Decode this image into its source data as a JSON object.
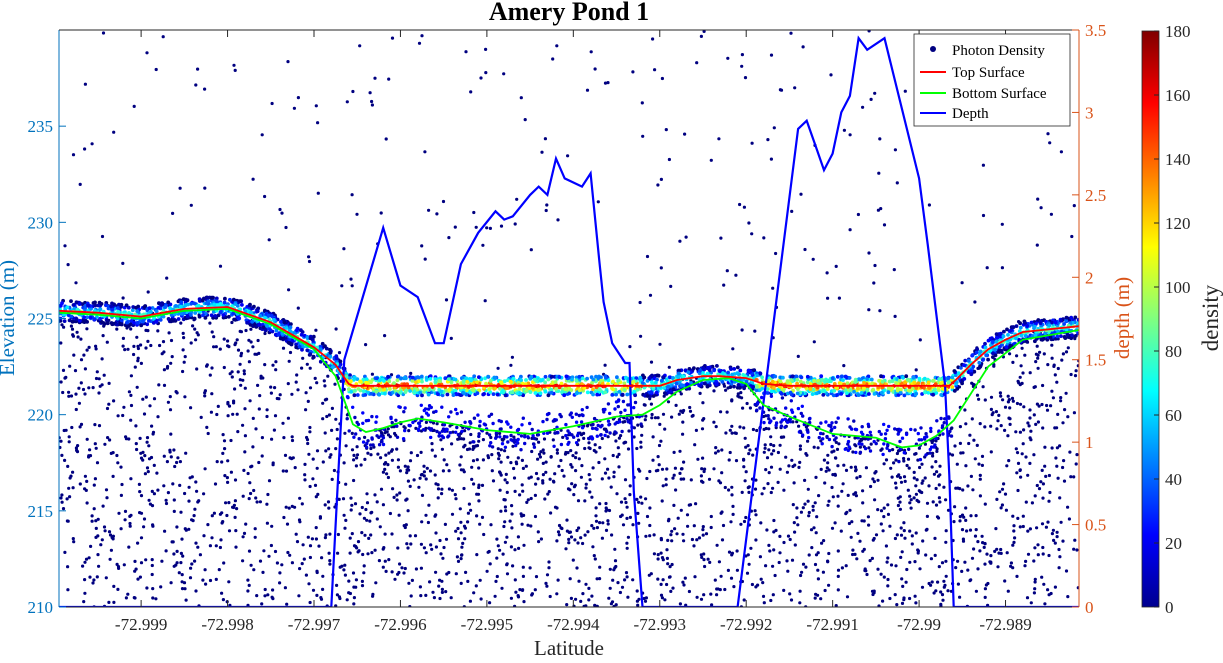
{
  "chart_data": {
    "type": "scatter",
    "title": "Amery Pond 1",
    "xlabel": "Latitude",
    "ylabel_left": "Elevation (m)",
    "ylabel_right": "depth (m)",
    "colorbar_label": "density",
    "xlim": [
      -72.99995,
      -72.98815
    ],
    "ylim_left": [
      210,
      240
    ],
    "ylim_right": [
      0,
      3.5
    ],
    "clim": [
      0,
      180
    ],
    "x_ticks": [
      -72.999,
      -72.998,
      -72.997,
      -72.996,
      -72.995,
      -72.994,
      -72.993,
      -72.992,
      -72.991,
      -72.99,
      -72.989
    ],
    "x_tick_labels": [
      "-72.999",
      "-72.998",
      "-72.997",
      "-72.996",
      "-72.995",
      "-72.994",
      "-72.993",
      "-72.992",
      "-72.991",
      "-72.99",
      "-72.989"
    ],
    "y_left_ticks": [
      210,
      215,
      220,
      225,
      230,
      235
    ],
    "y_left_tick_labels": [
      "210",
      "215",
      "220",
      "225",
      "230",
      "235"
    ],
    "y_right_ticks": [
      0,
      0.5,
      1,
      1.5,
      2,
      2.5,
      3,
      3.5
    ],
    "y_right_tick_labels": [
      "0",
      "0.5",
      "1",
      "1.5",
      "2",
      "2.5",
      "3",
      "3.5"
    ],
    "colorbar_ticks": [
      0,
      20,
      40,
      60,
      80,
      100,
      120,
      140,
      160,
      180
    ],
    "colorbar_tick_labels": [
      "0",
      "20",
      "40",
      "60",
      "80",
      "100",
      "120",
      "140",
      "160",
      "180"
    ],
    "colors": {
      "left_axis": "#0072BD",
      "right_axis": "#D95319",
      "top_surface": "#FF0000",
      "bottom_surface": "#00FF00",
      "depth": "#0000FF",
      "photon_marker": "#000080"
    },
    "legend": {
      "placement": "top-right",
      "entries": [
        "Photon Density",
        "Top Surface",
        "Bottom Surface",
        "Depth"
      ]
    },
    "series": [
      {
        "name": "Top Surface",
        "axis": "left",
        "x": [
          -72.99995,
          -72.9995,
          -72.999,
          -72.9985,
          -72.998,
          -72.9975,
          -72.997,
          -72.99675,
          -72.9966,
          -72.99655,
          -72.9965,
          -72.996,
          -72.995,
          -72.994,
          -72.9933,
          -72.993,
          -72.9928,
          -72.9925,
          -72.9923,
          -72.992,
          -72.9918,
          -72.9915,
          -72.991,
          -72.9905,
          -72.99,
          -72.98965,
          -72.9896,
          -72.9894,
          -72.9892,
          -72.989,
          -72.9888,
          -72.98815
        ],
        "y": [
          225.4,
          225.3,
          225.1,
          225.5,
          225.6,
          224.8,
          223.5,
          222.6,
          221.6,
          221.5,
          221.5,
          221.5,
          221.5,
          221.5,
          221.5,
          221.5,
          221.8,
          222.0,
          222.0,
          221.9,
          221.6,
          221.5,
          221.5,
          221.5,
          221.5,
          221.5,
          221.7,
          222.6,
          223.4,
          223.9,
          224.3,
          224.6
        ]
      },
      {
        "name": "Bottom Surface",
        "axis": "left",
        "x": [
          -72.99995,
          -72.9995,
          -72.999,
          -72.9985,
          -72.998,
          -72.9975,
          -72.997,
          -72.99675,
          -72.99655,
          -72.9964,
          -72.9962,
          -72.996,
          -72.9958,
          -72.9955,
          -72.995,
          -72.9945,
          -72.994,
          -72.9935,
          -72.9932,
          -72.993,
          -72.9928,
          -72.9925,
          -72.9922,
          -72.992,
          -72.9918,
          -72.9915,
          -72.991,
          -72.9905,
          -72.9902,
          -72.99,
          -72.9898,
          -72.9896,
          -72.9892,
          -72.9888,
          -72.98815
        ],
        "y": [
          225.3,
          225.2,
          225.0,
          225.4,
          225.5,
          224.7,
          223.4,
          222.0,
          219.5,
          219.1,
          219.3,
          219.6,
          219.8,
          219.6,
          219.2,
          219.0,
          219.4,
          219.9,
          220.0,
          220.5,
          221.2,
          221.8,
          221.9,
          221.6,
          220.5,
          219.9,
          219.0,
          218.8,
          218.3,
          218.4,
          218.9,
          219.7,
          222.5,
          223.9,
          224.4
        ]
      },
      {
        "name": "Depth",
        "axis": "right",
        "x": [
          -72.99995,
          -72.9968,
          -72.99665,
          -72.9962,
          -72.996,
          -72.9958,
          -72.9956,
          -72.9955,
          -72.9953,
          -72.9951,
          -72.9949,
          -72.9948,
          -72.9947,
          -72.9945,
          -72.9944,
          -72.9943,
          -72.9942,
          -72.9941,
          -72.9939,
          -72.9938,
          -72.9937,
          -72.99365,
          -72.99355,
          -72.9934,
          -72.99335,
          -72.9933,
          -72.9932,
          -72.9926,
          -72.9921,
          -72.9914,
          -72.9913,
          -72.9912,
          -72.9911,
          -72.991,
          -72.9909,
          -72.9908,
          -72.9907,
          -72.9906,
          -72.9904,
          -72.99,
          -72.9899,
          -72.9897,
          -72.98965,
          -72.9896,
          -72.9895,
          -72.9894,
          -72.98815
        ],
        "y": [
          0,
          0,
          1.5,
          2.3,
          1.95,
          1.88,
          1.6,
          1.6,
          2.08,
          2.27,
          2.4,
          2.35,
          2.37,
          2.5,
          2.55,
          2.5,
          2.72,
          2.6,
          2.55,
          2.63,
          2.1,
          1.85,
          1.6,
          1.48,
          1.48,
          0.7,
          0,
          0,
          0,
          2.9,
          2.95,
          2.8,
          2.65,
          2.75,
          3.0,
          3.1,
          3.45,
          3.38,
          3.45,
          2.6,
          2.2,
          1.35,
          0.8,
          0,
          0,
          0,
          0
        ]
      }
    ]
  }
}
